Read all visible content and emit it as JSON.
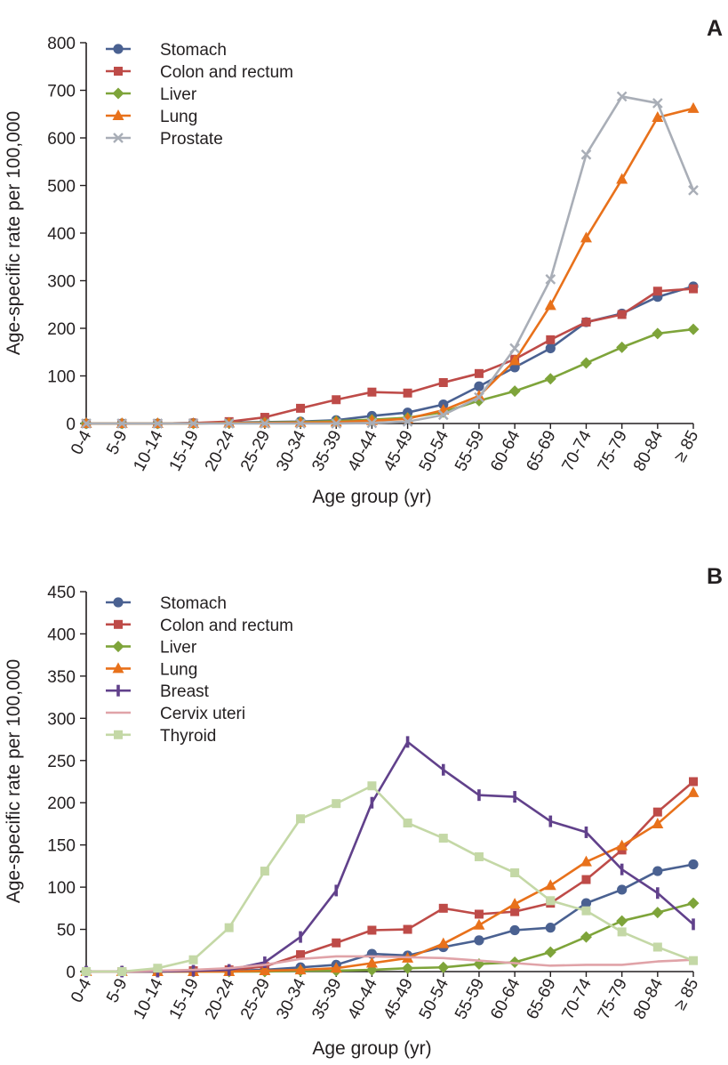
{
  "chart_data": [
    {
      "type": "line",
      "panel_label": "A",
      "xlabel": "Age group (yr)",
      "ylabel": "Age-specific rate per 100,000",
      "ylim": [
        0,
        800
      ],
      "yticks": [
        0,
        100,
        200,
        300,
        400,
        500,
        600,
        700,
        800
      ],
      "categories": [
        "0-4",
        "5-9",
        "10-14",
        "15-19",
        "20-24",
        "25-29",
        "30-34",
        "35-39",
        "40-44",
        "45-49",
        "50-54",
        "55-59",
        "60-64",
        "65-69",
        "70-74",
        "75-79",
        "80-84",
        "≥ 85"
      ],
      "legend_position": "top-left",
      "series": [
        {
          "name": "Stomach",
          "color": "#4a6191",
          "marker": "circle",
          "values": [
            0,
            0,
            0,
            1,
            2,
            3,
            4,
            7,
            16,
            23,
            40,
            78,
            118,
            158,
            213,
            231,
            266,
            288
          ]
        },
        {
          "name": "Colon and rectum",
          "color": "#be4b48",
          "marker": "square",
          "values": [
            0,
            0,
            0,
            1,
            4,
            13,
            32,
            50,
            66,
            64,
            86,
            105,
            135,
            176,
            213,
            229,
            278,
            283
          ]
        },
        {
          "name": "Liver",
          "color": "#7ea43a",
          "marker": "diamond",
          "values": [
            0,
            0,
            0,
            0,
            1,
            2,
            3,
            5,
            8,
            12,
            24,
            48,
            68,
            94,
            127,
            160,
            189,
            198
          ]
        },
        {
          "name": "Lung",
          "color": "#e8711b",
          "marker": "triangle",
          "values": [
            0,
            0,
            0,
            0,
            1,
            1,
            2,
            3,
            6,
            10,
            28,
            58,
            132,
            248,
            390,
            513,
            643,
            662
          ]
        },
        {
          "name": "Prostate",
          "color": "#a9aeb7",
          "marker": "x",
          "values": [
            0,
            0,
            0,
            0,
            0,
            0,
            0,
            0,
            1,
            4,
            18,
            55,
            158,
            303,
            565,
            687,
            673,
            490
          ]
        }
      ]
    },
    {
      "type": "line",
      "panel_label": "B",
      "xlabel": "Age group (yr)",
      "ylabel": "Age-specific rate per 100,000",
      "ylim": [
        0,
        450
      ],
      "yticks": [
        0,
        50,
        100,
        150,
        200,
        250,
        300,
        350,
        400,
        450
      ],
      "categories": [
        "0-4",
        "5-9",
        "10-14",
        "15-19",
        "20-24",
        "25-29",
        "30-34",
        "35-39",
        "40-44",
        "45-49",
        "50-54",
        "55-59",
        "60-64",
        "65-69",
        "70-74",
        "75-79",
        "80-84",
        "≥ 85"
      ],
      "legend_position": "top-left",
      "series": [
        {
          "name": "Stomach",
          "color": "#4a6191",
          "marker": "circle",
          "values": [
            0,
            0,
            0,
            1,
            1,
            2,
            5,
            8,
            21,
            19,
            29,
            37,
            49,
            52,
            81,
            97,
            119,
            127
          ]
        },
        {
          "name": "Colon and rectum",
          "color": "#be4b48",
          "marker": "square",
          "values": [
            0,
            0,
            0,
            1,
            2,
            6,
            20,
            34,
            49,
            50,
            75,
            68,
            71,
            81,
            109,
            144,
            189,
            225
          ]
        },
        {
          "name": "Liver",
          "color": "#7ea43a",
          "marker": "diamond",
          "values": [
            0,
            0,
            0,
            0,
            0,
            0,
            1,
            1,
            2,
            4,
            5,
            9,
            11,
            23,
            41,
            60,
            70,
            81
          ]
        },
        {
          "name": "Lung",
          "color": "#e8711b",
          "marker": "triangle",
          "values": [
            0,
            0,
            0,
            0,
            0,
            1,
            2,
            4,
            10,
            16,
            33,
            55,
            80,
            102,
            130,
            149,
            175,
            212
          ]
        },
        {
          "name": "Breast",
          "color": "#61418b",
          "marker": "bar",
          "values": [
            0,
            0,
            0,
            1,
            2,
            11,
            41,
            96,
            200,
            272,
            239,
            209,
            207,
            178,
            165,
            121,
            93,
            56
          ]
        },
        {
          "name": "Cervix uteri",
          "color": "#e0a3a8",
          "marker": "none",
          "values": [
            0,
            0,
            1,
            2,
            4,
            8,
            15,
            18,
            18,
            17,
            16,
            13,
            10,
            7,
            8,
            8,
            12,
            14
          ]
        },
        {
          "name": "Thyroid",
          "color": "#c4d8a6",
          "marker": "square",
          "values": [
            0,
            0,
            4,
            14,
            52,
            119,
            181,
            199,
            220,
            176,
            158,
            136,
            117,
            84,
            72,
            47,
            29,
            13
          ]
        }
      ]
    }
  ]
}
